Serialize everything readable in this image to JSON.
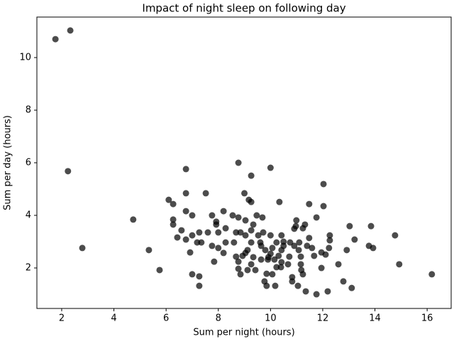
{
  "chart_data": {
    "type": "scatter",
    "title": "Impact of night sleep on following day",
    "xlabel": "Sum per night (hours)",
    "ylabel": "Sum per day (hours)",
    "color": "#000000",
    "opacity": 0.7,
    "x": [
      1.76,
      2.33,
      2.24,
      2.79,
      4.74,
      5.34,
      5.75,
      6.1,
      6.27,
      6.27,
      6.27,
      6.43,
      6.59,
      6.76,
      6.76,
      6.76,
      6.76,
      6.92,
      7.0,
      7.0,
      7.0,
      7.19,
      7.27,
      7.27,
      7.27,
      7.35,
      7.52,
      7.6,
      7.76,
      7.76,
      7.84,
      7.92,
      7.92,
      8.0,
      8.0,
      8.2,
      8.2,
      8.28,
      8.28,
      8.55,
      8.6,
      8.68,
      8.68,
      8.77,
      8.77,
      8.77,
      8.77,
      8.85,
      8.85,
      8.93,
      9.0,
      9.04,
      9.04,
      9.04,
      9.12,
      9.12,
      9.17,
      9.26,
      9.26,
      9.26,
      9.26,
      9.26,
      9.34,
      9.34,
      9.42,
      9.47,
      9.53,
      9.61,
      9.64,
      9.64,
      9.69,
      9.72,
      9.77,
      9.8,
      9.85,
      9.85,
      9.9,
      9.92,
      10.0,
      10.0,
      10.0,
      10.07,
      10.07,
      10.15,
      10.18,
      10.23,
      10.23,
      10.31,
      10.34,
      10.4,
      10.42,
      10.42,
      10.42,
      10.5,
      10.5,
      10.67,
      10.72,
      10.75,
      10.83,
      10.83,
      10.91,
      10.91,
      10.97,
      10.99,
      11.05,
      11.08,
      11.1,
      11.16,
      11.16,
      11.18,
      11.24,
      11.24,
      11.32,
      11.35,
      11.4,
      11.48,
      11.48,
      11.59,
      11.67,
      11.76,
      11.76,
      11.95,
      11.95,
      12.03,
      12.03,
      12.11,
      12.19,
      12.24,
      12.27,
      12.27,
      12.6,
      12.79,
      12.92,
      13.03,
      13.11,
      13.22,
      13.77,
      13.85,
      13.93,
      14.77,
      14.93,
      16.18
    ],
    "values": [
      10.7,
      11.03,
      5.68,
      2.76,
      3.84,
      2.68,
      1.92,
      4.59,
      4.43,
      3.84,
      3.65,
      3.16,
      3.43,
      5.76,
      4.84,
      4.16,
      3.08,
      2.59,
      1.76,
      4.0,
      3.24,
      2.97,
      1.68,
      1.32,
      3.35,
      2.97,
      4.84,
      3.35,
      2.84,
      4.0,
      2.24,
      3.65,
      3.76,
      2.76,
      3.35,
      4.16,
      2.57,
      2.97,
      3.51,
      4.0,
      2.97,
      3.35,
      2.43,
      6.0,
      3.92,
      2.24,
      1.97,
      1.76,
      3.35,
      2.46,
      4.84,
      3.81,
      3.24,
      2.57,
      2.68,
      1.92,
      4.59,
      5.51,
      4.51,
      3.43,
      2.97,
      2.14,
      3.65,
      2.41,
      1.92,
      4.0,
      3.24,
      2.97,
      2.84,
      2.32,
      3.92,
      3.35,
      1.49,
      2.68,
      1.78,
      1.32,
      2.32,
      2.41,
      5.81,
      3.24,
      2.54,
      2.76,
      1.76,
      2.32,
      1.32,
      2.97,
      2.03,
      2.46,
      4.51,
      2.03,
      3.24,
      2.68,
      2.22,
      3.0,
      2.84,
      2.14,
      2.43,
      2.97,
      1.49,
      1.65,
      2.84,
      3.49,
      3.59,
      3.81,
      1.32,
      2.68,
      2.97,
      2.43,
      2.14,
      1.92,
      1.76,
      3.51,
      3.65,
      1.11,
      2.84,
      3.14,
      4.43,
      2.76,
      2.46,
      3.92,
      1.0,
      2.0,
      2.59,
      5.19,
      4.35,
      2.51,
      1.11,
      2.76,
      3.24,
      3.05,
      2.14,
      1.49,
      2.68,
      3.59,
      1.24,
      3.08,
      2.84,
      3.59,
      2.76,
      3.24,
      2.14,
      1.76
    ],
    "xlim": [
      1.05,
      16.92
    ],
    "ylim": [
      0.46,
      11.54
    ],
    "xticks": [
      2,
      4,
      6,
      8,
      10,
      12,
      14,
      16
    ],
    "yticks": [
      2,
      4,
      6,
      8,
      10
    ]
  }
}
